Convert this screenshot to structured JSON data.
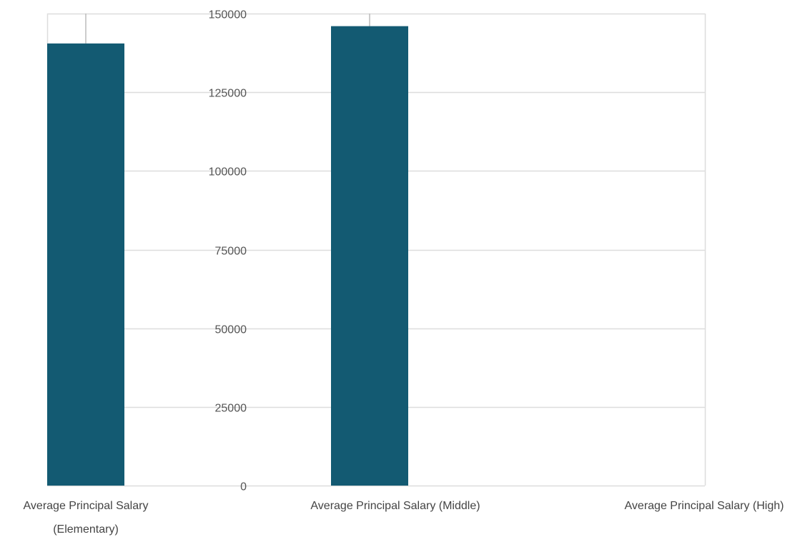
{
  "chart_data": {
    "type": "bar",
    "categories": [
      [
        "Average Principal Salary",
        "(Elementary)"
      ],
      [
        "Average Principal Salary (Middle)"
      ],
      [
        "Average Principal Salary (High)"
      ]
    ],
    "values": [
      140500,
      146000,
      null
    ],
    "ylim": [
      0,
      150000
    ],
    "yticks": [
      0,
      25000,
      50000,
      75000,
      100000,
      125000,
      150000
    ],
    "grid": true,
    "legend": "none",
    "bar_color": "#135a72",
    "grid_color": "#dddddd"
  }
}
